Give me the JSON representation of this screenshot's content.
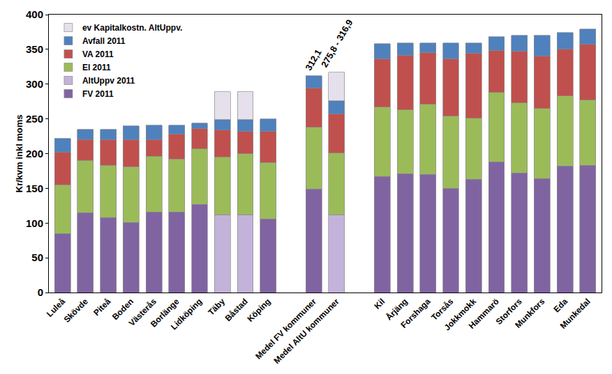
{
  "chart_data": {
    "type": "bar",
    "stacked": true,
    "grid": false,
    "legend": "top left",
    "ylabel": "Kr/kvm inkl moms",
    "ylim": [
      0,
      400
    ],
    "yticks": [
      0,
      50,
      100,
      150,
      200,
      250,
      300,
      350,
      400
    ],
    "categories": [
      "Luleå",
      "Skövde",
      "Piteå",
      "Boden",
      "Västerås",
      "Borlänge",
      "Lidköping",
      "Täby",
      "Båstad",
      "Köping",
      null,
      "Medel FV kommuner",
      "Medel AltU kommuner",
      null,
      "Kil",
      "Årjäng",
      "Forshaga",
      "Torsås",
      "Jokkmokk",
      "Hammarö",
      "Storfors",
      "Munkfors",
      "Eda",
      "Munkedal"
    ],
    "series": [
      {
        "name": "FV 2011",
        "color": "#8064a2",
        "values": [
          85,
          115,
          108,
          101,
          116,
          116,
          127,
          null,
          null,
          106,
          null,
          149,
          null,
          null,
          167,
          171,
          170,
          150,
          163,
          188,
          172,
          164,
          182,
          183
        ]
      },
      {
        "name": "AltUppv 2011",
        "color": "#c3b3da",
        "values": [
          null,
          null,
          null,
          null,
          null,
          null,
          null,
          112,
          112,
          null,
          null,
          null,
          112,
          null,
          null,
          null,
          null,
          null,
          null,
          null,
          null,
          null,
          null,
          null
        ]
      },
      {
        "name": "El 2011",
        "color": "#9bbb59",
        "values": [
          70,
          75,
          75,
          80,
          80,
          76,
          80,
          83,
          88,
          81,
          null,
          89,
          89,
          null,
          100,
          92,
          101,
          104,
          88,
          100,
          101,
          101,
          101,
          94
        ]
      },
      {
        "name": "VA 2011",
        "color": "#c0504d",
        "values": [
          47,
          30,
          37,
          39,
          24,
          36,
          29,
          39,
          32,
          45,
          null,
          56,
          56,
          null,
          69,
          78,
          74,
          82,
          93,
          60,
          74,
          75,
          67,
          80
        ]
      },
      {
        "name": "Avfall 2011",
        "color": "#4f81bd",
        "values": [
          20,
          15,
          15,
          20,
          21,
          13,
          8,
          15,
          17,
          18,
          null,
          18.1,
          18.8,
          null,
          22,
          18,
          14,
          23,
          15,
          20,
          23,
          30,
          24,
          22
        ]
      },
      {
        "name": "ev Kapitalkostn. AltUppv.",
        "color": "#e6e0ec",
        "values": [
          null,
          null,
          null,
          null,
          null,
          null,
          null,
          40,
          40,
          null,
          null,
          null,
          41.1,
          null,
          null,
          null,
          null,
          null,
          null,
          null,
          null,
          null,
          null,
          null
        ]
      }
    ],
    "annotations": [
      {
        "text": "312,1",
        "category": "Medel FV kommuner"
      },
      {
        "text": "275,8 - 316,9",
        "category": "Medel AltU kommuner"
      }
    ]
  }
}
